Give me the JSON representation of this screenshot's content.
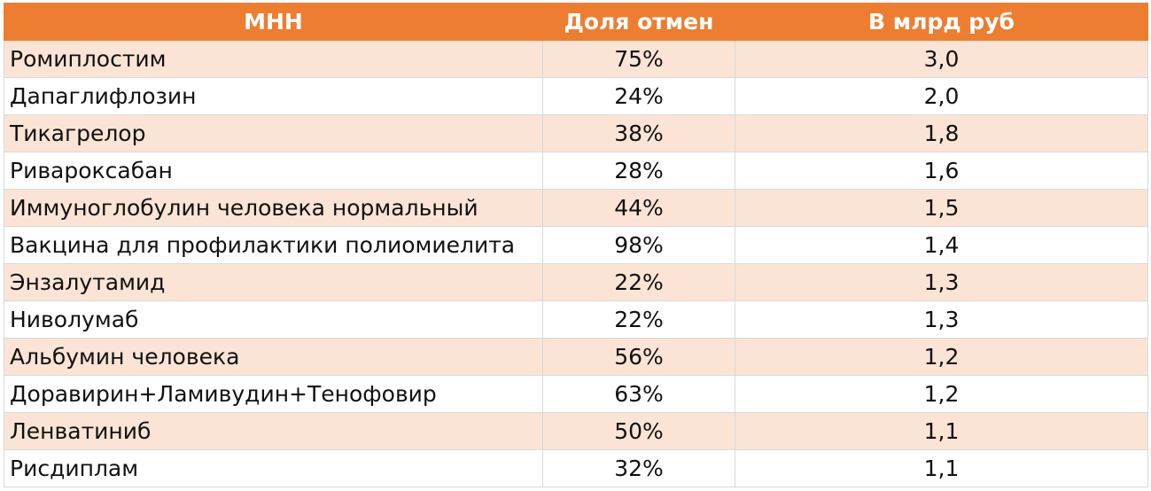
{
  "table": {
    "headers": [
      "МНН",
      "Доля отмен",
      "В млрд руб"
    ],
    "rows": [
      [
        "Ромиплостим",
        "75%",
        "3,0"
      ],
      [
        "Дапаглифлозин",
        "24%",
        "2,0"
      ],
      [
        "Тикагрелор",
        "38%",
        "1,8"
      ],
      [
        "Ривароксабан",
        "28%",
        "1,6"
      ],
      [
        "Иммуноглобулин человека нормальный",
        "44%",
        "1,5"
      ],
      [
        "Вакцина для профилактики полиомиелита",
        "98%",
        "1,4"
      ],
      [
        "Энзалутамид",
        "22%",
        "1,3"
      ],
      [
        "Ниволумаб",
        "22%",
        "1,3"
      ],
      [
        "Альбумин человека",
        "56%",
        "1,2"
      ],
      [
        "Доравирин+Ламивудин+Тенофовир",
        "63%",
        "1,2"
      ],
      [
        "Ленватиниб",
        "50%",
        "1,1"
      ],
      [
        "Рисдиплам",
        "32%",
        "1,1"
      ]
    ]
  },
  "colors": {
    "header_bg": "#ed7d31",
    "header_text": "#ffffff",
    "band_bg": "#fbe4d5",
    "plain_bg": "#ffffff"
  }
}
